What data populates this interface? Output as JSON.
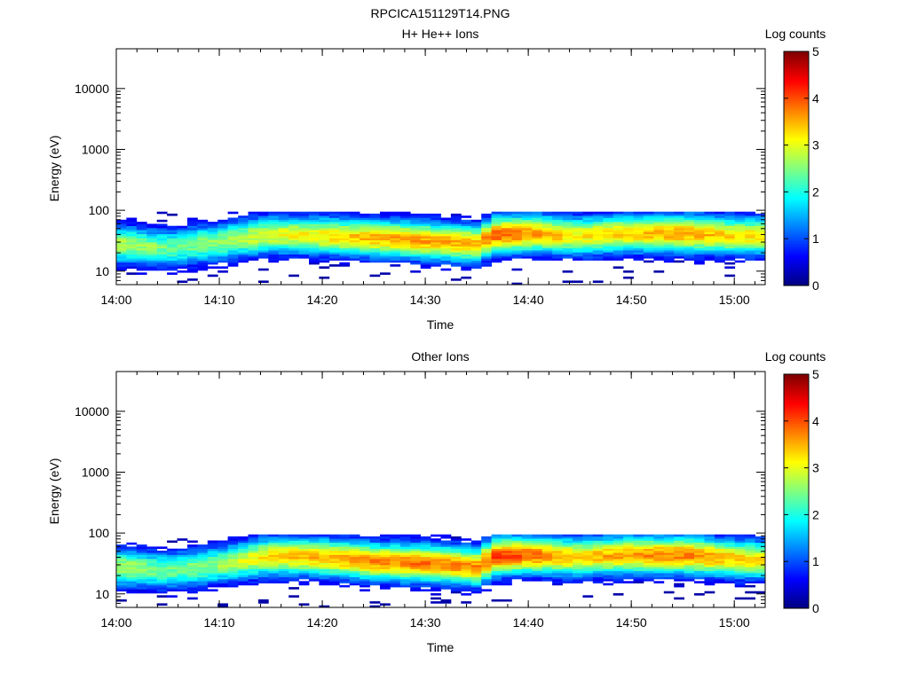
{
  "figure_title": "RPCICA151129T14.PNG",
  "colors": {
    "colormap": [
      "#00007f",
      "#0000ff",
      "#0080ff",
      "#00ffff",
      "#80ff80",
      "#ffff00",
      "#ff8000",
      "#ff0000",
      "#7f0000"
    ]
  },
  "chart_data": [
    {
      "type": "heatmap",
      "title": "H+ He++ Ions",
      "xlabel": "Time",
      "ylabel": "Energy (eV)",
      "x_ticks": [
        "14:00",
        "14:10",
        "14:20",
        "14:30",
        "14:40",
        "14:50",
        "15:00"
      ],
      "xlim": [
        "14:00",
        "15:03"
      ],
      "y_scale": "log",
      "y_ticks": [
        10,
        100,
        1000,
        10000
      ],
      "y_tick_labels": [
        "10",
        "100",
        "1000",
        "10000"
      ],
      "ylim": [
        6,
        45000
      ],
      "colorbar": {
        "label": "Log counts",
        "range": [
          0,
          5
        ],
        "ticks": [
          "0",
          "1",
          "2",
          "3",
          "4",
          "5"
        ]
      },
      "time_bins": 64,
      "band": {
        "time_minutes": [
          0,
          5,
          10,
          15,
          20,
          25,
          30,
          35,
          37,
          40,
          45,
          50,
          55,
          60,
          63
        ],
        "center_eV": [
          28,
          24,
          30,
          40,
          38,
          35,
          32,
          28,
          40,
          42,
          38,
          42,
          42,
          38,
          38
        ],
        "peak_log_counts": [
          2.8,
          2.4,
          2.6,
          3.0,
          3.2,
          3.5,
          3.6,
          3.5,
          3.9,
          3.7,
          3.2,
          3.4,
          3.6,
          3.3,
          3.2
        ]
      },
      "top_energy_eV": 95
    },
    {
      "type": "heatmap",
      "title": "Other Ions",
      "xlabel": "Time",
      "ylabel": "Energy (eV)",
      "x_ticks": [
        "14:00",
        "14:10",
        "14:20",
        "14:30",
        "14:40",
        "14:50",
        "15:00"
      ],
      "xlim": [
        "14:00",
        "15:03"
      ],
      "y_scale": "log",
      "y_ticks": [
        10,
        100,
        1000,
        10000
      ],
      "y_tick_labels": [
        "10",
        "100",
        "1000",
        "10000"
      ],
      "ylim": [
        6,
        45000
      ],
      "colorbar": {
        "label": "Log counts",
        "range": [
          0,
          5
        ],
        "ticks": [
          "0",
          "1",
          "2",
          "3",
          "4",
          "5"
        ]
      },
      "time_bins": 64,
      "band": {
        "time_minutes": [
          0,
          5,
          10,
          15,
          20,
          25,
          30,
          35,
          37,
          40,
          45,
          50,
          55,
          60,
          63
        ],
        "center_eV": [
          28,
          24,
          30,
          42,
          40,
          34,
          32,
          28,
          42,
          44,
          40,
          44,
          44,
          38,
          36
        ],
        "peak_log_counts": [
          2.8,
          2.4,
          2.6,
          3.3,
          3.5,
          3.7,
          3.8,
          3.7,
          4.1,
          3.9,
          3.4,
          3.6,
          3.8,
          3.4,
          3.2
        ]
      },
      "top_energy_eV": 95
    }
  ]
}
